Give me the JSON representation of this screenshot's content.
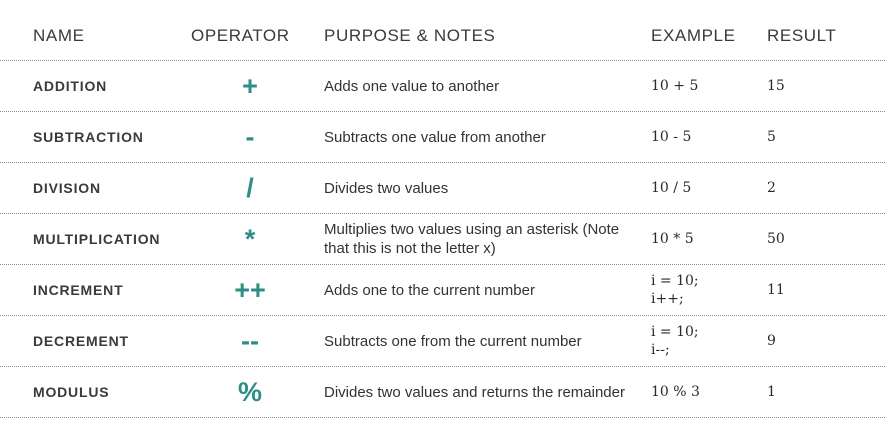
{
  "headers": {
    "name": "NAME",
    "operator": "OPERATOR",
    "purpose": "PURPOSE & NOTES",
    "example": "EXAMPLE",
    "result": "RESULT"
  },
  "accent_color": "#2f8c86",
  "rows": [
    {
      "name": "ADDITION",
      "operator": "+",
      "purpose": "Adds one value to another",
      "example": "10 + 5",
      "result": "15"
    },
    {
      "name": "SUBTRACTION",
      "operator": "-",
      "purpose": "Subtracts one value from another",
      "example": "10 - 5",
      "result": "5"
    },
    {
      "name": "DIVISION",
      "operator": "/",
      "purpose": "Divides two values",
      "example": "10 / 5",
      "result": "2"
    },
    {
      "name": "MULTIPLICATION",
      "operator": "*",
      "purpose": "Multiplies two values using an asterisk (Note that this is not the letter x)",
      "example": "10 * 5",
      "result": "50"
    },
    {
      "name": "INCREMENT",
      "operator": "++",
      "purpose": "Adds one to the current number",
      "example": "i = 10;\ni++;",
      "result": "11"
    },
    {
      "name": "DECREMENT",
      "operator": "--",
      "purpose": "Subtracts one from the current number",
      "example": "i = 10;\ni--;",
      "result": "9"
    },
    {
      "name": "MODULUS",
      "operator": "%",
      "purpose": "Divides two values and returns the remainder",
      "example": "10 % 3",
      "result": "1"
    }
  ]
}
